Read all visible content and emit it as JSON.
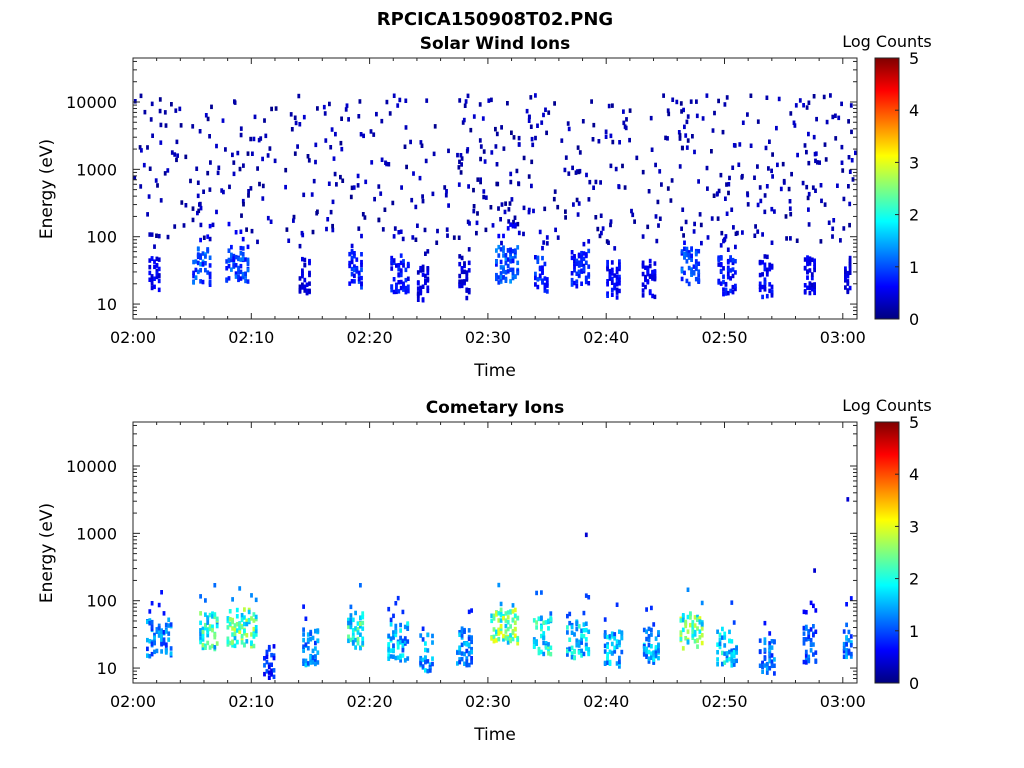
{
  "page": {
    "title": "RPCICA150908T02.PNG"
  },
  "colormap": [
    "#00007f",
    "#0000ff",
    "#007fff",
    "#00ffff",
    "#7fff7f",
    "#ffff00",
    "#ff7f00",
    "#ff0000",
    "#7f0000"
  ],
  "chart_data": [
    {
      "type": "heatmap",
      "title": "Solar Wind Ions",
      "xlabel": "Time",
      "ylabel": "Energy (eV)",
      "y_scale": "log",
      "x_ticks": [
        "02:00",
        "02:10",
        "02:20",
        "02:30",
        "02:40",
        "02:50",
        "03:00"
      ],
      "x_tick_values": [
        0,
        10,
        20,
        30,
        40,
        50,
        60
      ],
      "xlim": [
        0,
        61.2
      ],
      "y_ticks": [
        "10",
        "100",
        "1000",
        "10000"
      ],
      "y_tick_values": [
        10,
        100,
        1000,
        10000
      ],
      "ylim": [
        6,
        45000
      ],
      "colorbar": {
        "label": "Log Counts",
        "ticks": [
          "0",
          "1",
          "2",
          "3",
          "4",
          "5"
        ],
        "range": [
          0,
          5
        ]
      },
      "bursts": [
        {
          "t": 1.8,
          "e": 30,
          "level": 0.6,
          "width": 1.0
        },
        {
          "t": 5.8,
          "e": 38,
          "level": 1.2,
          "width": 1.6
        },
        {
          "t": 8.8,
          "e": 42,
          "level": 1.1,
          "width": 2.0
        },
        {
          "t": 14.5,
          "e": 28,
          "level": 0.5,
          "width": 1.0
        },
        {
          "t": 18.8,
          "e": 35,
          "level": 0.9,
          "width": 1.2
        },
        {
          "t": 22.5,
          "e": 30,
          "level": 0.8,
          "width": 1.5
        },
        {
          "t": 24.5,
          "e": 22,
          "level": 0.5,
          "width": 1.0
        },
        {
          "t": 28.0,
          "e": 24,
          "level": 0.5,
          "width": 1.0
        },
        {
          "t": 31.6,
          "e": 42,
          "level": 1.2,
          "width": 2.0
        },
        {
          "t": 34.5,
          "e": 30,
          "level": 0.9,
          "width": 1.2
        },
        {
          "t": 37.8,
          "e": 35,
          "level": 0.9,
          "width": 1.6
        },
        {
          "t": 40.6,
          "e": 25,
          "level": 0.7,
          "width": 1.2
        },
        {
          "t": 43.6,
          "e": 25,
          "level": 0.6,
          "width": 1.2
        },
        {
          "t": 47.1,
          "e": 38,
          "level": 1.2,
          "width": 1.6
        },
        {
          "t": 50.2,
          "e": 28,
          "level": 0.8,
          "width": 1.6
        },
        {
          "t": 53.5,
          "e": 25,
          "level": 0.7,
          "width": 1.2
        },
        {
          "t": 57.2,
          "e": 28,
          "level": 0.6,
          "width": 1.0
        },
        {
          "t": 60.4,
          "e": 30,
          "level": 0.6,
          "width": 0.6
        }
      ]
    },
    {
      "type": "heatmap",
      "title": "Cometary Ions",
      "xlabel": "Time",
      "ylabel": "Energy (eV)",
      "y_scale": "log",
      "x_ticks": [
        "02:00",
        "02:10",
        "02:20",
        "02:30",
        "02:40",
        "02:50",
        "03:00"
      ],
      "x_tick_values": [
        0,
        10,
        20,
        30,
        40,
        50,
        60
      ],
      "xlim": [
        0,
        61.2
      ],
      "y_ticks": [
        "10",
        "100",
        "1000",
        "10000"
      ],
      "y_tick_values": [
        10,
        100,
        1000,
        10000
      ],
      "ylim": [
        6,
        45000
      ],
      "colorbar": {
        "label": "Log Counts",
        "ticks": [
          "0",
          "1",
          "2",
          "3",
          "4",
          "5"
        ],
        "range": [
          0,
          5
        ]
      },
      "bursts": [
        {
          "t": 2.2,
          "e": 30,
          "level": 1.4,
          "width": 2.2
        },
        {
          "t": 6.4,
          "e": 38,
          "level": 2.3,
          "width": 1.6
        },
        {
          "t": 9.2,
          "e": 42,
          "level": 2.6,
          "width": 2.6
        },
        {
          "t": 11.5,
          "e": 12,
          "level": 1.0,
          "width": 1.0
        },
        {
          "t": 15.0,
          "e": 22,
          "level": 1.5,
          "width": 1.4
        },
        {
          "t": 18.8,
          "e": 38,
          "level": 2.3,
          "width": 1.4
        },
        {
          "t": 22.4,
          "e": 26,
          "level": 1.7,
          "width": 1.8
        },
        {
          "t": 24.8,
          "e": 18,
          "level": 1.6,
          "width": 1.2
        },
        {
          "t": 28.0,
          "e": 22,
          "level": 1.5,
          "width": 1.4
        },
        {
          "t": 31.4,
          "e": 42,
          "level": 2.7,
          "width": 2.4
        },
        {
          "t": 34.6,
          "e": 32,
          "level": 2.2,
          "width": 1.6
        },
        {
          "t": 37.6,
          "e": 28,
          "level": 1.9,
          "width": 2.0
        },
        {
          "t": 40.6,
          "e": 20,
          "level": 1.7,
          "width": 1.6
        },
        {
          "t": 43.8,
          "e": 22,
          "level": 1.7,
          "width": 1.4
        },
        {
          "t": 47.2,
          "e": 38,
          "level": 2.6,
          "width": 2.0
        },
        {
          "t": 50.2,
          "e": 22,
          "level": 1.9,
          "width": 1.8
        },
        {
          "t": 53.6,
          "e": 16,
          "level": 1.4,
          "width": 1.4
        },
        {
          "t": 57.2,
          "e": 24,
          "level": 1.2,
          "width": 1.2
        },
        {
          "t": 60.4,
          "e": 28,
          "level": 1.4,
          "width": 0.8
        }
      ],
      "isolated_points": [
        {
          "t": 38.2,
          "e": 950,
          "level": 0.4
        },
        {
          "t": 57.5,
          "e": 280,
          "level": 0.4
        },
        {
          "t": 60.3,
          "e": 3200,
          "level": 0.4
        }
      ]
    }
  ]
}
